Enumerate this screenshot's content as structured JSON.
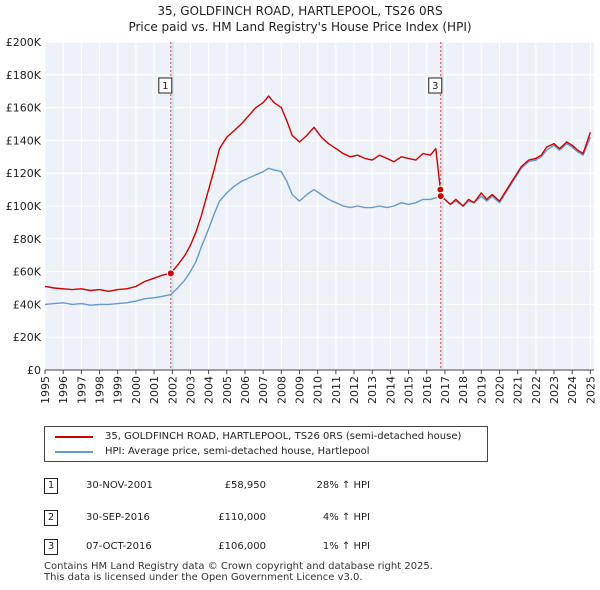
{
  "chart_data": {
    "type": "line",
    "title": "35, GOLDFINCH ROAD, HARTLEPOOL, TS26 0RS",
    "subtitle": "Price paid vs. HM Land Registry's House Price Index (HPI)",
    "xlim": [
      1995,
      2025.2
    ],
    "ylim": [
      0,
      200000
    ],
    "x_ticks": [
      1995,
      1996,
      1997,
      1998,
      1999,
      2000,
      2001,
      2002,
      2003,
      2004,
      2005,
      2006,
      2007,
      2008,
      2009,
      2010,
      2011,
      2012,
      2013,
      2014,
      2015,
      2016,
      2017,
      2018,
      2019,
      2020,
      2021,
      2022,
      2023,
      2024,
      2025
    ],
    "y_ticks": [
      {
        "value": 0,
        "label": "£0"
      },
      {
        "value": 20000,
        "label": "£20K"
      },
      {
        "value": 40000,
        "label": "£40K"
      },
      {
        "value": 60000,
        "label": "£60K"
      },
      {
        "value": 80000,
        "label": "£80K"
      },
      {
        "value": 100000,
        "label": "£100K"
      },
      {
        "value": 120000,
        "label": "£120K"
      },
      {
        "value": 140000,
        "label": "£140K"
      },
      {
        "value": 160000,
        "label": "£160K"
      },
      {
        "value": 180000,
        "label": "£180K"
      },
      {
        "value": 200000,
        "label": "£200K"
      }
    ],
    "grid": true,
    "series": [
      {
        "name": "35, GOLDFINCH ROAD, HARTLEPOOL, TS26 0RS (semi-detached house)",
        "color": "#cc0000",
        "points": [
          [
            1995.0,
            51000
          ],
          [
            1995.5,
            50000
          ],
          [
            1996.0,
            49500
          ],
          [
            1996.5,
            49000
          ],
          [
            1997.0,
            49500
          ],
          [
            1997.5,
            48500
          ],
          [
            1998.0,
            49000
          ],
          [
            1998.5,
            48000
          ],
          [
            1999.0,
            49000
          ],
          [
            1999.5,
            49500
          ],
          [
            2000.0,
            51000
          ],
          [
            2000.5,
            54000
          ],
          [
            2001.0,
            56000
          ],
          [
            2001.5,
            58000
          ],
          [
            2001.92,
            58950
          ],
          [
            2002.3,
            64000
          ],
          [
            2002.7,
            70000
          ],
          [
            2003.0,
            76000
          ],
          [
            2003.3,
            84000
          ],
          [
            2003.6,
            94000
          ],
          [
            2004.0,
            110000
          ],
          [
            2004.3,
            122000
          ],
          [
            2004.6,
            135000
          ],
          [
            2005.0,
            142000
          ],
          [
            2005.4,
            146000
          ],
          [
            2005.8,
            150000
          ],
          [
            2006.2,
            155000
          ],
          [
            2006.6,
            160000
          ],
          [
            2007.0,
            163000
          ],
          [
            2007.3,
            167000
          ],
          [
            2007.6,
            163000
          ],
          [
            2008.0,
            160000
          ],
          [
            2008.3,
            152000
          ],
          [
            2008.6,
            143000
          ],
          [
            2009.0,
            139000
          ],
          [
            2009.4,
            143000
          ],
          [
            2009.8,
            148000
          ],
          [
            2010.2,
            142000
          ],
          [
            2010.6,
            138000
          ],
          [
            2011.0,
            135000
          ],
          [
            2011.4,
            132000
          ],
          [
            2011.8,
            130000
          ],
          [
            2012.2,
            131000
          ],
          [
            2012.6,
            129000
          ],
          [
            2013.0,
            128000
          ],
          [
            2013.4,
            131000
          ],
          [
            2013.8,
            129000
          ],
          [
            2014.2,
            127000
          ],
          [
            2014.6,
            130000
          ],
          [
            2015.0,
            129000
          ],
          [
            2015.4,
            128000
          ],
          [
            2015.8,
            132000
          ],
          [
            2016.2,
            131000
          ],
          [
            2016.5,
            135000
          ],
          [
            2016.75,
            110000
          ],
          [
            2016.77,
            106000
          ],
          [
            2017.0,
            104000
          ],
          [
            2017.3,
            101000
          ],
          [
            2017.6,
            104000
          ],
          [
            2018.0,
            100000
          ],
          [
            2018.3,
            104000
          ],
          [
            2018.6,
            102000
          ],
          [
            2019.0,
            108000
          ],
          [
            2019.3,
            104000
          ],
          [
            2019.6,
            107000
          ],
          [
            2020.0,
            103000
          ],
          [
            2020.4,
            110000
          ],
          [
            2020.8,
            117000
          ],
          [
            2021.2,
            124000
          ],
          [
            2021.6,
            128000
          ],
          [
            2022.0,
            129000
          ],
          [
            2022.3,
            131000
          ],
          [
            2022.6,
            136000
          ],
          [
            2023.0,
            138000
          ],
          [
            2023.3,
            135000
          ],
          [
            2023.7,
            139000
          ],
          [
            2024.0,
            137000
          ],
          [
            2024.3,
            134000
          ],
          [
            2024.6,
            132000
          ],
          [
            2025.0,
            145000
          ]
        ]
      },
      {
        "name": "HPI: Average price, semi-detached house, Hartlepool",
        "color": "#6699cc",
        "points": [
          [
            1995.0,
            40000
          ],
          [
            1995.5,
            40500
          ],
          [
            1996.0,
            41000
          ],
          [
            1996.5,
            40000
          ],
          [
            1997.0,
            40500
          ],
          [
            1997.5,
            39500
          ],
          [
            1998.0,
            40000
          ],
          [
            1998.5,
            40000
          ],
          [
            1999.0,
            40500
          ],
          [
            1999.5,
            41000
          ],
          [
            2000.0,
            42000
          ],
          [
            2000.5,
            43500
          ],
          [
            2001.0,
            44000
          ],
          [
            2001.5,
            45000
          ],
          [
            2001.92,
            46000
          ],
          [
            2002.3,
            50000
          ],
          [
            2002.7,
            55000
          ],
          [
            2003.0,
            60000
          ],
          [
            2003.3,
            66000
          ],
          [
            2003.6,
            75000
          ],
          [
            2004.0,
            86000
          ],
          [
            2004.3,
            95000
          ],
          [
            2004.6,
            103000
          ],
          [
            2005.0,
            108000
          ],
          [
            2005.4,
            112000
          ],
          [
            2005.8,
            115000
          ],
          [
            2006.2,
            117000
          ],
          [
            2006.6,
            119000
          ],
          [
            2007.0,
            121000
          ],
          [
            2007.3,
            123000
          ],
          [
            2007.6,
            122000
          ],
          [
            2008.0,
            121000
          ],
          [
            2008.3,
            115000
          ],
          [
            2008.6,
            107000
          ],
          [
            2009.0,
            103000
          ],
          [
            2009.4,
            107000
          ],
          [
            2009.8,
            110000
          ],
          [
            2010.2,
            107000
          ],
          [
            2010.6,
            104000
          ],
          [
            2011.0,
            102000
          ],
          [
            2011.4,
            100000
          ],
          [
            2011.8,
            99000
          ],
          [
            2012.2,
            100000
          ],
          [
            2012.6,
            99000
          ],
          [
            2013.0,
            99000
          ],
          [
            2013.4,
            100000
          ],
          [
            2013.8,
            99000
          ],
          [
            2014.2,
            100000
          ],
          [
            2014.6,
            102000
          ],
          [
            2015.0,
            101000
          ],
          [
            2015.4,
            102000
          ],
          [
            2015.8,
            104000
          ],
          [
            2016.2,
            104000
          ],
          [
            2016.5,
            105000
          ],
          [
            2016.75,
            105500
          ],
          [
            2017.0,
            104000
          ],
          [
            2017.3,
            101000
          ],
          [
            2017.6,
            103000
          ],
          [
            2018.0,
            100000
          ],
          [
            2018.3,
            103000
          ],
          [
            2018.6,
            102000
          ],
          [
            2019.0,
            106000
          ],
          [
            2019.3,
            103000
          ],
          [
            2019.6,
            106000
          ],
          [
            2020.0,
            102000
          ],
          [
            2020.4,
            109000
          ],
          [
            2020.8,
            116000
          ],
          [
            2021.2,
            123000
          ],
          [
            2021.6,
            127000
          ],
          [
            2022.0,
            128000
          ],
          [
            2022.3,
            130000
          ],
          [
            2022.6,
            134000
          ],
          [
            2023.0,
            137000
          ],
          [
            2023.3,
            134000
          ],
          [
            2023.7,
            138000
          ],
          [
            2024.0,
            136000
          ],
          [
            2024.3,
            133000
          ],
          [
            2024.6,
            131000
          ],
          [
            2025.0,
            142000
          ]
        ]
      }
    ],
    "sales": [
      {
        "id": "1",
        "date": "30-NOV-2001",
        "price": "£58,950",
        "hpi": "28% ↑ HPI",
        "x": 2001.92,
        "y": 58950
      },
      {
        "id": "2",
        "date": "30-SEP-2016",
        "price": "£110,000",
        "hpi": "4% ↑ HPI",
        "x": 2016.75,
        "y": 110000
      },
      {
        "id": "3",
        "date": "07-OCT-2016",
        "price": "£106,000",
        "hpi": "1% ↑ HPI",
        "x": 2016.77,
        "y": 106000
      }
    ],
    "annotation_markers": [
      {
        "label": "1",
        "x": 2001.92
      },
      {
        "label": "3",
        "x": 2016.77
      }
    ],
    "legend_position": "bottom"
  },
  "footer": {
    "line1": "Contains HM Land Registry data © Crown copyright and database right 2025.",
    "line2": "This data is licensed under the Open Government Licence v3.0."
  }
}
